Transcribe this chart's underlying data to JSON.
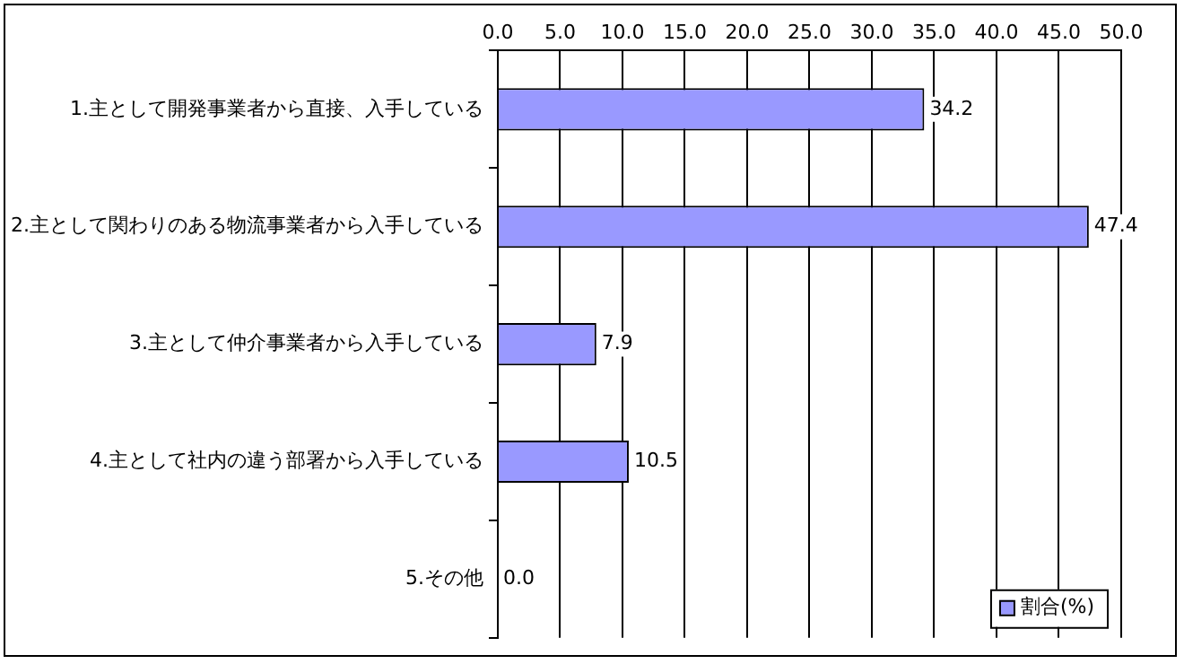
{
  "chart_data": {
    "type": "bar",
    "orientation": "horizontal",
    "categories": [
      "1.主として開発事業者から直接、入手している",
      "2.主として関わりのある物流事業者から入手している",
      "3.主として仲介事業者から入手している",
      "4.主として社内の違う部署から入手している",
      "5.その他"
    ],
    "series": [
      {
        "name": "割合(%)",
        "color": "#9999ff",
        "values": [
          34.2,
          47.4,
          7.9,
          10.5,
          0.0
        ],
        "value_labels": [
          "34.2",
          "47.4",
          "7.9",
          "10.5",
          "0.0"
        ]
      }
    ],
    "xlim": [
      0,
      50
    ],
    "xticks": [
      {
        "value": 0,
        "label": "0.0"
      },
      {
        "value": 5,
        "label": "5.0"
      },
      {
        "value": 10,
        "label": "10.0"
      },
      {
        "value": 15,
        "label": "15.0"
      },
      {
        "value": 20,
        "label": "20.0"
      },
      {
        "value": 25,
        "label": "25.0"
      },
      {
        "value": 30,
        "label": "30.0"
      },
      {
        "value": 35,
        "label": "35.0"
      },
      {
        "value": 40,
        "label": "40.0"
      },
      {
        "value": 45,
        "label": "45.0"
      },
      {
        "value": 50,
        "label": "50.0"
      }
    ],
    "grid": "x",
    "legend": "bottom right"
  }
}
